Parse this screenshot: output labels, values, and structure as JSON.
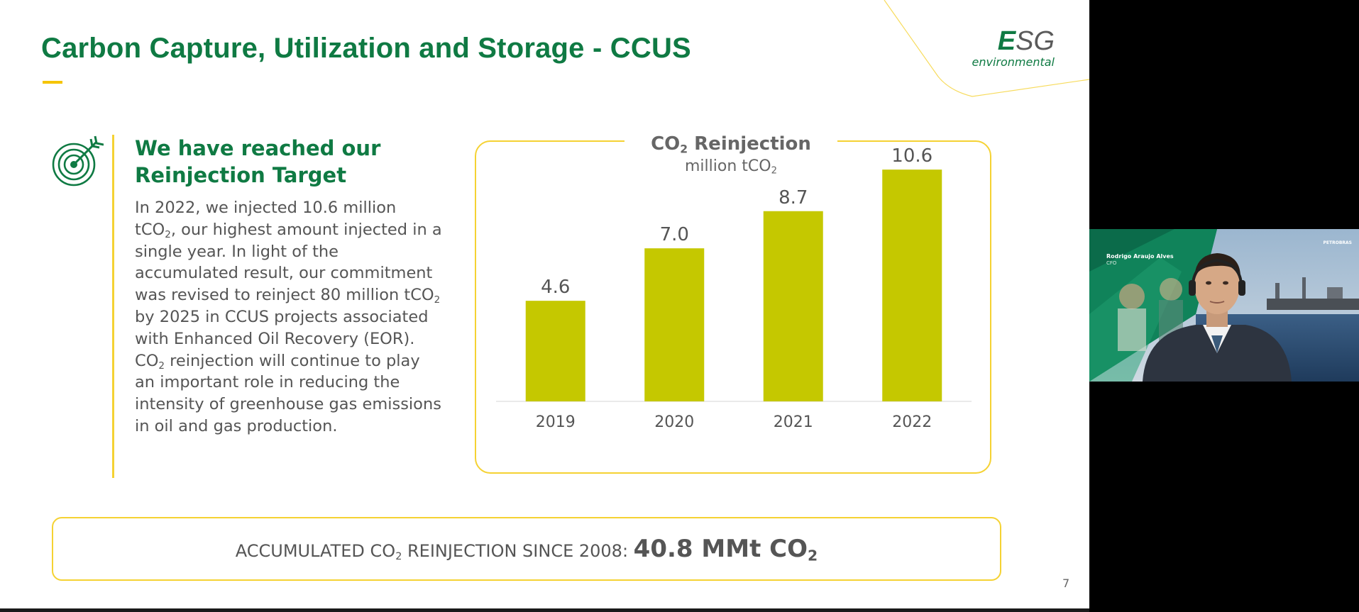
{
  "slide": {
    "title": "Carbon Capture, Utilization and Storage - CCUS",
    "logo": {
      "e": "E",
      "sg": "SG",
      "sub": "environmental"
    },
    "headline": [
      "We have reached our",
      "Reinjection Target"
    ],
    "body_lines": [
      [
        "In 2022, we injected 10.6 million"
      ],
      [
        "tCO",
        "2",
        ", our highest amount injected in a"
      ],
      [
        "single year. In light of the"
      ],
      [
        "accumulated result, our commitment"
      ],
      [
        "was revised to reinject 80 million tCO",
        "2"
      ],
      [
        "by 2025 in CCUS projects associated"
      ],
      [
        "with Enhanced Oil Recovery (EOR)."
      ],
      [
        "CO",
        "2",
        " reinjection will continue to play"
      ],
      [
        "an important role in reducing the"
      ],
      [
        "intensity of greenhouse gas emissions"
      ],
      [
        "in oil and gas production."
      ]
    ],
    "accumulated": {
      "label_a": "ACCUMULATED CO",
      "label_sub": "2",
      "label_b": " REINJECTION SINCE 2008: ",
      "value": "40.8 MMt CO",
      "value_sub": "2"
    },
    "page_number": "7"
  },
  "chart_data": {
    "type": "bar",
    "title": "CO2 Reinjection",
    "title_parts": [
      "CO",
      "2",
      " Reinjection"
    ],
    "unit_parts": [
      "million tCO",
      "2"
    ],
    "categories": [
      "2019",
      "2020",
      "2021",
      "2022"
    ],
    "values": [
      4.6,
      7.0,
      8.7,
      10.6
    ],
    "value_labels": [
      "4.6",
      "7.0",
      "8.7",
      "10.6"
    ],
    "ylabel": "million tCO2",
    "ylim": [
      0,
      12
    ],
    "bar_color": "#c5c800"
  },
  "video": {
    "name": "Rodrigo Araujo Alves",
    "role": "CFO",
    "brand": "PETROBRAS"
  },
  "colors": {
    "brand_green": "#0f7a43",
    "accent_yellow": "#f5d233",
    "text_gray": "#555555"
  }
}
